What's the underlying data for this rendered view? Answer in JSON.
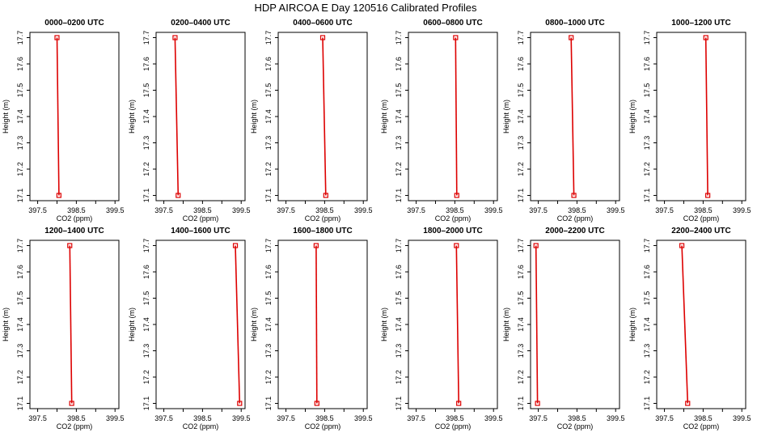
{
  "title": "HDP AIRCOA E  Day 120516  Calibrated Profiles",
  "colors": {
    "series": "#dd0000",
    "axis": "#000000"
  },
  "chart_data": [
    {
      "type": "line",
      "title": "0000–0200 UTC",
      "xlabel": "CO2 (ppm)",
      "ylabel": "Height (m)",
      "xlim": [
        397.3,
        399.6
      ],
      "ylim": [
        17.08,
        17.72
      ],
      "xticks": [
        "397.5",
        "398.5",
        "399.5"
      ],
      "yticks": [
        "17.1",
        "17.2",
        "17.3",
        "17.4",
        "17.5",
        "17.6",
        "17.7"
      ],
      "x": [
        398.05,
        398.0
      ],
      "y": [
        17.1,
        17.7
      ]
    },
    {
      "type": "line",
      "title": "0200–0400 UTC",
      "xlabel": "CO2 (ppm)",
      "ylabel": "Height (m)",
      "xlim": [
        397.3,
        399.6
      ],
      "ylim": [
        17.08,
        17.72
      ],
      "xticks": [
        "397.5",
        "398.5",
        "399.5"
      ],
      "yticks": [
        "17.1",
        "17.2",
        "17.3",
        "17.4",
        "17.5",
        "17.6",
        "17.7"
      ],
      "x": [
        397.87,
        397.79
      ],
      "y": [
        17.1,
        17.7
      ]
    },
    {
      "type": "line",
      "title": "0400–0600 UTC",
      "xlabel": "CO2 (ppm)",
      "ylabel": "Height (m)",
      "xlim": [
        397.3,
        399.6
      ],
      "ylim": [
        17.08,
        17.72
      ],
      "xticks": [
        "397.5",
        "398.5",
        "399.5"
      ],
      "yticks": [
        "17.1",
        "17.2",
        "17.3",
        "17.4",
        "17.5",
        "17.6",
        "17.7"
      ],
      "x": [
        398.53,
        398.45
      ],
      "y": [
        17.1,
        17.7
      ]
    },
    {
      "type": "line",
      "title": "0600–0800 UTC",
      "xlabel": "CO2 (ppm)",
      "ylabel": "Height (m)",
      "xlim": [
        397.3,
        399.6
      ],
      "ylim": [
        17.08,
        17.72
      ],
      "xticks": [
        "397.5",
        "398.5",
        "399.5"
      ],
      "yticks": [
        "17.1",
        "17.2",
        "17.3",
        "17.4",
        "17.5",
        "17.6",
        "17.7"
      ],
      "x": [
        398.55,
        398.52
      ],
      "y": [
        17.1,
        17.7
      ]
    },
    {
      "type": "line",
      "title": "0800–1000 UTC",
      "xlabel": "CO2 (ppm)",
      "ylabel": "Height (m)",
      "xlim": [
        397.3,
        399.6
      ],
      "ylim": [
        17.08,
        17.72
      ],
      "xticks": [
        "397.5",
        "398.5",
        "399.5"
      ],
      "yticks": [
        "17.1",
        "17.2",
        "17.3",
        "17.4",
        "17.5",
        "17.6",
        "17.7"
      ],
      "x": [
        398.42,
        398.35
      ],
      "y": [
        17.1,
        17.7
      ]
    },
    {
      "type": "line",
      "title": "1000–1200 UTC",
      "xlabel": "CO2 (ppm)",
      "ylabel": "Height (m)",
      "xlim": [
        397.3,
        399.6
      ],
      "ylim": [
        17.08,
        17.72
      ],
      "xticks": [
        "397.5",
        "398.5",
        "399.5"
      ],
      "yticks": [
        "17.1",
        "17.2",
        "17.3",
        "17.4",
        "17.5",
        "17.6",
        "17.7"
      ],
      "x": [
        398.62,
        398.57
      ],
      "y": [
        17.1,
        17.7
      ]
    },
    {
      "type": "line",
      "title": "1200–1400 UTC",
      "xlabel": "CO2 (ppm)",
      "ylabel": "Height (m)",
      "xlim": [
        397.3,
        399.6
      ],
      "ylim": [
        17.08,
        17.72
      ],
      "xticks": [
        "397.5",
        "398.5",
        "399.5"
      ],
      "yticks": [
        "17.1",
        "17.2",
        "17.3",
        "17.4",
        "17.5",
        "17.6",
        "17.7"
      ],
      "x": [
        398.38,
        398.33
      ],
      "y": [
        17.1,
        17.7
      ]
    },
    {
      "type": "line",
      "title": "1400–1600 UTC",
      "xlabel": "CO2 (ppm)",
      "ylabel": "Height (m)",
      "xlim": [
        397.3,
        399.6
      ],
      "ylim": [
        17.08,
        17.72
      ],
      "xticks": [
        "397.5",
        "398.5",
        "399.5"
      ],
      "yticks": [
        "17.1",
        "17.2",
        "17.3",
        "17.4",
        "17.5",
        "17.6",
        "17.7"
      ],
      "x": [
        399.46,
        399.35
      ],
      "y": [
        17.1,
        17.7
      ]
    },
    {
      "type": "line",
      "title": "1600–1800 UTC",
      "xlabel": "CO2 (ppm)",
      "ylabel": "Height (m)",
      "xlim": [
        397.3,
        399.6
      ],
      "ylim": [
        17.08,
        17.72
      ],
      "xticks": [
        "397.5",
        "398.5",
        "399.5"
      ],
      "yticks": [
        "17.1",
        "17.2",
        "17.3",
        "17.4",
        "17.5",
        "17.6",
        "17.7"
      ],
      "x": [
        398.3,
        398.28
      ],
      "y": [
        17.1,
        17.7
      ]
    },
    {
      "type": "line",
      "title": "1800–2000 UTC",
      "xlabel": "CO2 (ppm)",
      "ylabel": "Height (m)",
      "xlim": [
        397.3,
        399.6
      ],
      "ylim": [
        17.08,
        17.72
      ],
      "xticks": [
        "397.5",
        "398.5",
        "399.5"
      ],
      "yticks": [
        "17.1",
        "17.2",
        "17.3",
        "17.4",
        "17.5",
        "17.6",
        "17.7"
      ],
      "x": [
        398.6,
        398.54
      ],
      "y": [
        17.1,
        17.7
      ]
    },
    {
      "type": "line",
      "title": "2000–2200 UTC",
      "xlabel": "CO2 (ppm)",
      "ylabel": "Height (m)",
      "xlim": [
        397.3,
        399.6
      ],
      "ylim": [
        17.08,
        17.72
      ],
      "xticks": [
        "397.5",
        "398.5",
        "399.5"
      ],
      "yticks": [
        "17.1",
        "17.2",
        "17.3",
        "17.4",
        "17.5",
        "17.6",
        "17.7"
      ],
      "x": [
        397.48,
        397.44
      ],
      "y": [
        17.1,
        17.7
      ]
    },
    {
      "type": "line",
      "title": "2200–2400 UTC",
      "xlabel": "CO2 (ppm)",
      "ylabel": "Height (m)",
      "xlim": [
        397.3,
        399.6
      ],
      "ylim": [
        17.08,
        17.72
      ],
      "xticks": [
        "397.5",
        "398.5",
        "399.5"
      ],
      "yticks": [
        "17.1",
        "17.2",
        "17.3",
        "17.4",
        "17.5",
        "17.6",
        "17.7"
      ],
      "x": [
        398.1,
        397.95
      ],
      "y": [
        17.1,
        17.7
      ]
    }
  ]
}
